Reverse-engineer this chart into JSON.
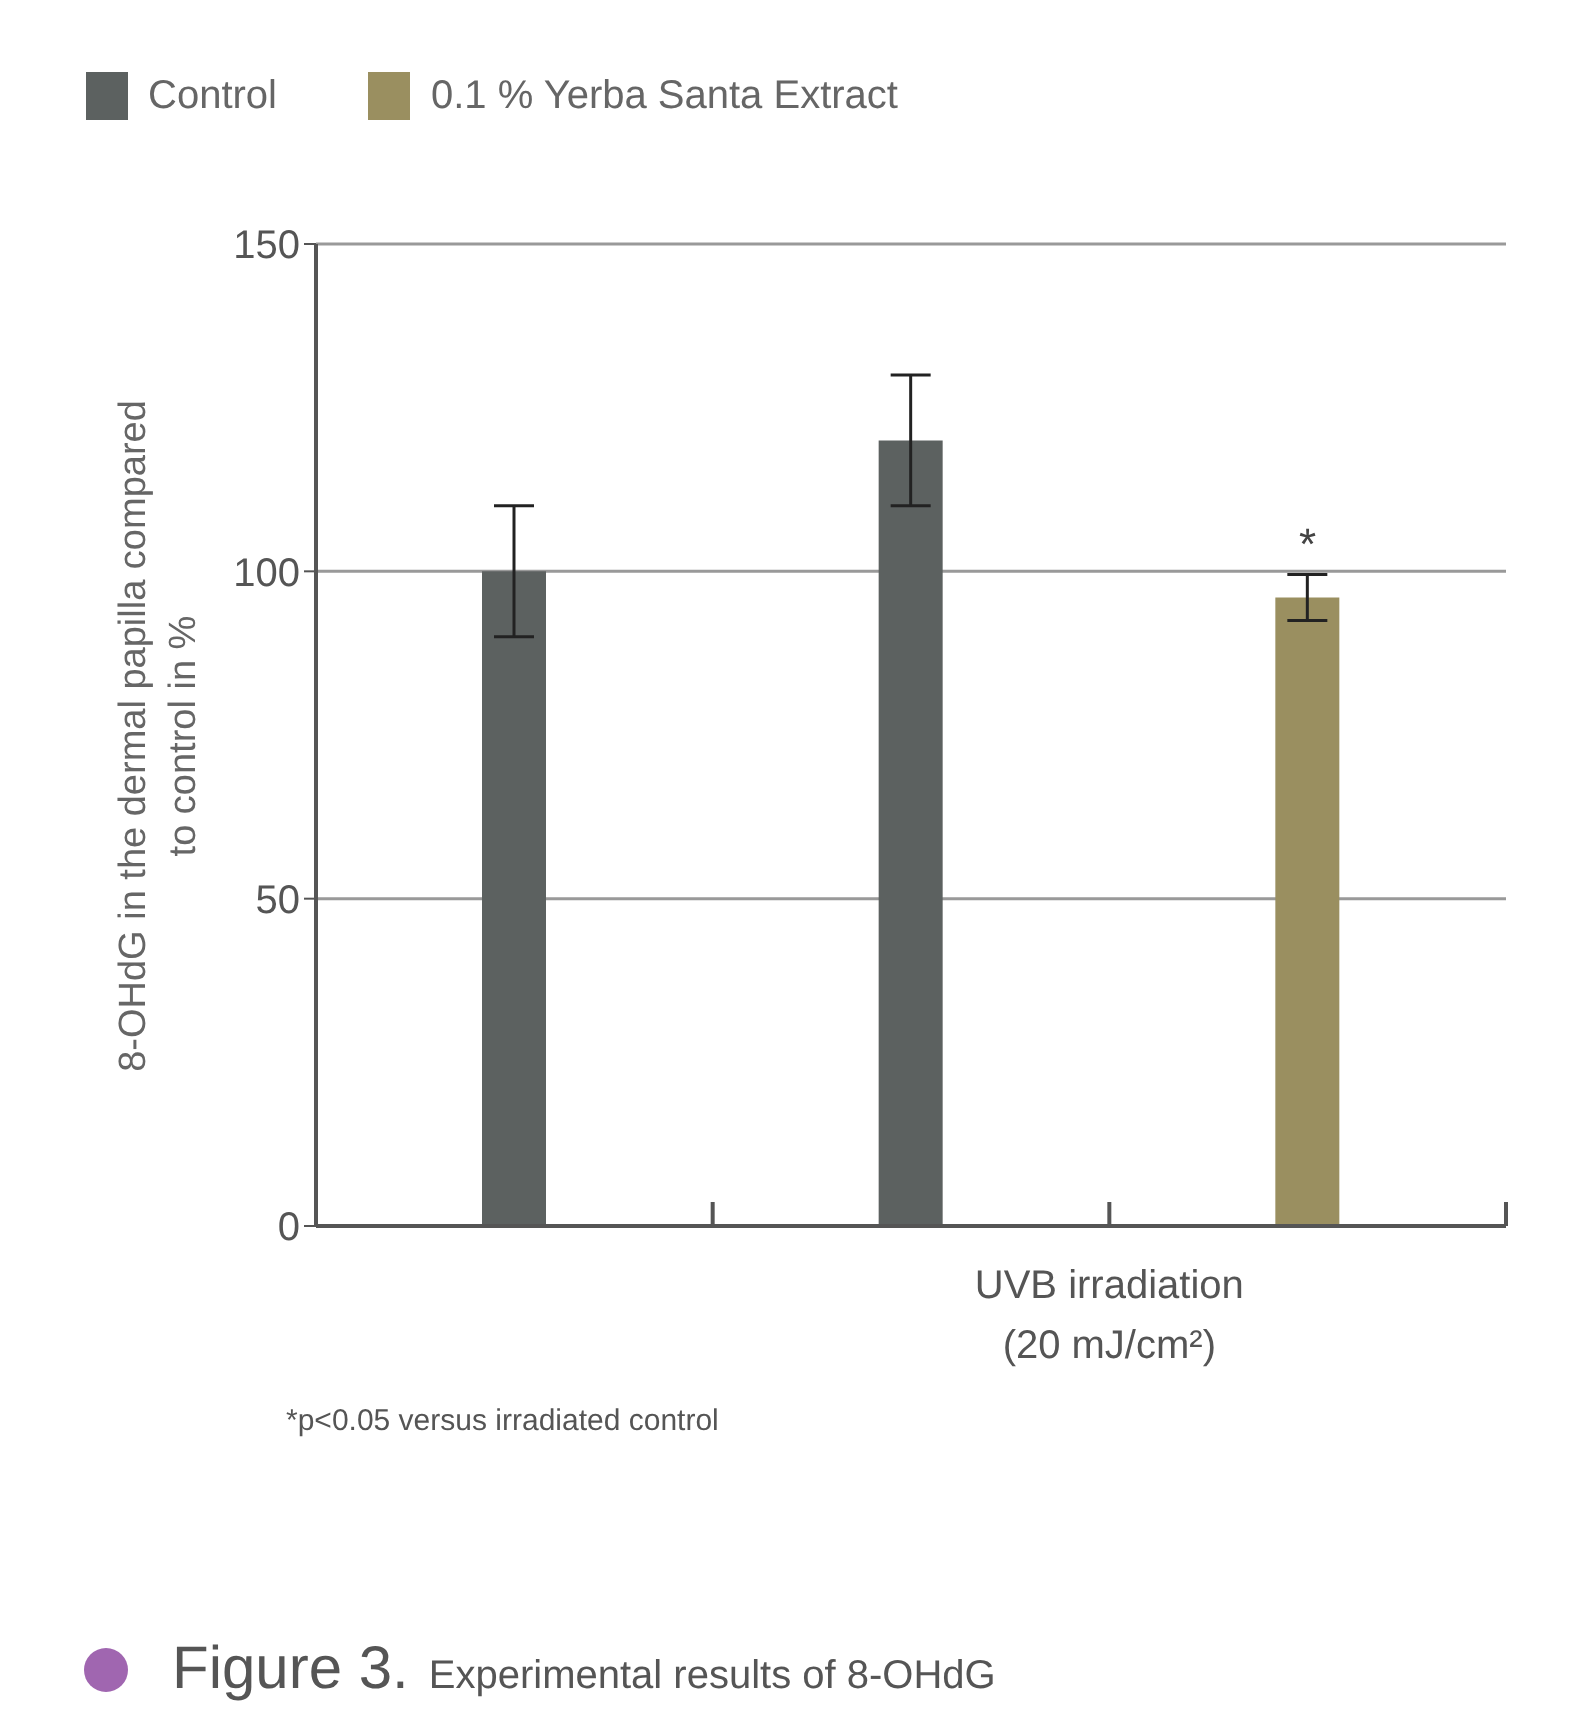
{
  "chart_data": {
    "type": "bar",
    "title": "Figure 3.",
    "subtitle": "Experimental results of 8-OHdG",
    "xlabel": "UVB irradiation (20 mJ/cm²)",
    "ylabel": "8-OHdG in the dermal papilla compared to control in %",
    "categories": [
      null,
      null,
      null
    ],
    "series": [
      {
        "name": "Control",
        "color": "#5c6160",
        "values": [
          100,
          120,
          null
        ],
        "errors": [
          10,
          10,
          null
        ]
      },
      {
        "name": "0.1 % Yerba Santa Extract",
        "color": "#9a8f60",
        "values": [
          null,
          null,
          96
        ],
        "errors": [
          null,
          null,
          3.5
        ]
      }
    ],
    "ylim": [
      0,
      150
    ],
    "yticks": [
      0,
      50,
      100,
      150
    ],
    "grid": "y",
    "legend": "top left",
    "annotations": [
      {
        "text": "*",
        "y": 100
      },
      "*p<0.05 versus irradiated control"
    ]
  }
}
